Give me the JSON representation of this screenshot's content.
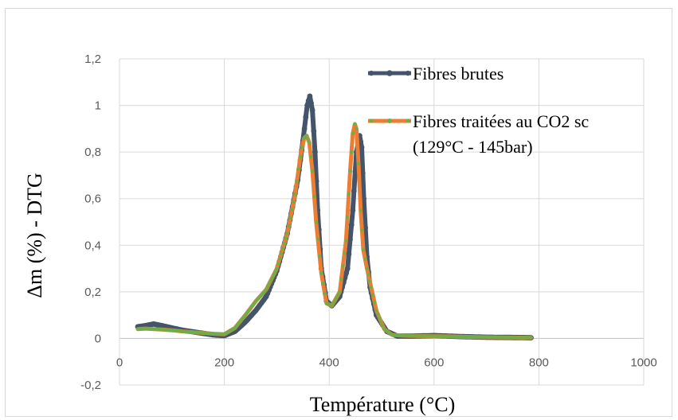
{
  "chart_data": {
    "type": "line",
    "xlabel": "Température (°C)",
    "ylabel": "Δm (%) - DTG",
    "xlim": [
      0,
      1000
    ],
    "ylim": [
      -0.2,
      1.2
    ],
    "x_ticks": [
      "0",
      "200",
      "400",
      "600",
      "800",
      "1000"
    ],
    "y_ticks": [
      "-0,2",
      "0",
      "0,2",
      "0,4",
      "0,6",
      "0,8",
      "1",
      "1,2"
    ],
    "grid": true,
    "legend_position": "top-right",
    "series": [
      {
        "name": "Fibres brutes",
        "color": "#44546a",
        "x": [
          35,
          50,
          65,
          80,
          100,
          120,
          150,
          180,
          200,
          220,
          240,
          260,
          280,
          300,
          320,
          340,
          350,
          358,
          363,
          368,
          373,
          378,
          385,
          395,
          405,
          420,
          435,
          445,
          452,
          458,
          462,
          466,
          472,
          478,
          490,
          510,
          530,
          560,
          600,
          650,
          700,
          750,
          785
        ],
        "y": [
          0.05,
          0.055,
          0.062,
          0.055,
          0.045,
          0.035,
          0.025,
          0.015,
          0.012,
          0.03,
          0.07,
          0.12,
          0.18,
          0.29,
          0.45,
          0.68,
          0.85,
          1.0,
          1.04,
          0.98,
          0.8,
          0.55,
          0.3,
          0.16,
          0.14,
          0.18,
          0.3,
          0.55,
          0.8,
          0.87,
          0.82,
          0.6,
          0.35,
          0.22,
          0.1,
          0.03,
          0.01,
          0.01,
          0.012,
          0.008,
          0.005,
          0.004,
          0.003
        ]
      },
      {
        "name": "Fibres traitées au CO2 sc\n(129°C - 145bar)",
        "legend_lines": [
          "Fibres traitées au CO2 sc",
          "(129°C - 145bar)"
        ],
        "color": "#ed7d31",
        "marker_color": "#70ad47",
        "x": [
          35,
          50,
          65,
          80,
          100,
          120,
          150,
          180,
          200,
          220,
          240,
          260,
          280,
          300,
          320,
          335,
          345,
          352,
          357,
          362,
          368,
          375,
          385,
          395,
          405,
          420,
          432,
          440,
          445,
          449,
          452,
          456,
          460,
          465,
          472,
          480,
          490,
          505,
          520,
          540,
          580,
          620,
          680,
          740,
          785
        ],
        "y": [
          0.04,
          0.042,
          0.04,
          0.038,
          0.035,
          0.03,
          0.025,
          0.02,
          0.018,
          0.045,
          0.1,
          0.16,
          0.21,
          0.3,
          0.45,
          0.62,
          0.78,
          0.86,
          0.87,
          0.84,
          0.72,
          0.5,
          0.28,
          0.15,
          0.14,
          0.2,
          0.42,
          0.72,
          0.88,
          0.92,
          0.9,
          0.75,
          0.55,
          0.38,
          0.3,
          0.22,
          0.12,
          0.04,
          0.015,
          0.012,
          0.01,
          0.009,
          0.006,
          0.004,
          0.003
        ]
      }
    ]
  }
}
